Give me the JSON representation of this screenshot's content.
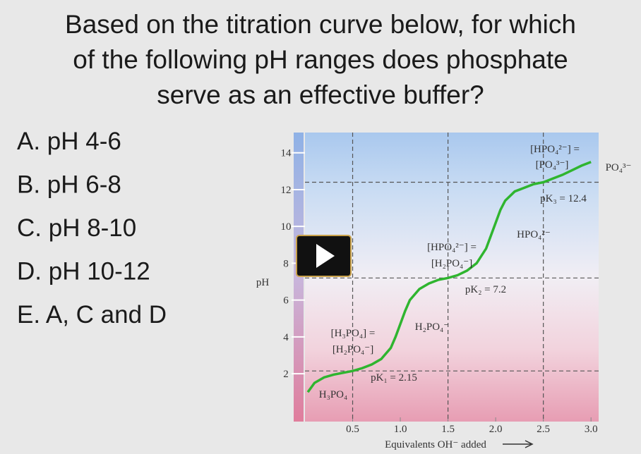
{
  "question": [
    "Based on the titration curve below, for which",
    "of the following pH ranges does phosphate",
    "serve as an effective buffer?"
  ],
  "choices": [
    "A.  pH 4-6",
    "B.  pH 6-8",
    "C.  pH 8-10",
    "D.  pH 10-12",
    "E.  A, C and D"
  ],
  "chart_data": {
    "type": "line",
    "y_label": "pH",
    "x_label": "Equivalents OH⁻ added",
    "x": [
      0.03,
      0.1,
      0.2,
      0.3,
      0.4,
      0.5,
      0.6,
      0.7,
      0.8,
      0.9,
      0.95,
      1.0,
      1.05,
      1.1,
      1.2,
      1.3,
      1.4,
      1.5,
      1.6,
      1.7,
      1.8,
      1.9,
      1.95,
      2.0,
      2.05,
      2.1,
      2.2,
      2.3,
      2.4,
      2.5,
      2.6,
      2.7,
      2.8,
      2.9,
      3.0
    ],
    "series": [
      {
        "color": "#2fb52f",
        "values": [
          1.0,
          1.5,
          1.8,
          1.95,
          2.05,
          2.15,
          2.3,
          2.5,
          2.8,
          3.4,
          4.0,
          4.7,
          5.4,
          6.0,
          6.6,
          6.9,
          7.1,
          7.2,
          7.35,
          7.6,
          8.0,
          8.8,
          9.5,
          10.2,
          10.9,
          11.4,
          11.9,
          12.1,
          12.3,
          12.4,
          12.6,
          12.8,
          13.05,
          13.3,
          13.5
        ]
      }
    ],
    "xlim": [
      0,
      3.08
    ],
    "ylim": [
      -0.6,
      15.1
    ],
    "xticks": [
      0.5,
      {
        "value": 1,
        "label": "1.0"
      },
      1.5,
      {
        "value": 2,
        "label": "2.0"
      },
      2.5,
      {
        "value": 3,
        "label": "3.0"
      }
    ],
    "yticks": [
      2,
      4,
      6,
      8,
      10,
      12,
      14
    ],
    "pk_lines": [
      {
        "x": 0.5,
        "value": 2.15,
        "label": "pK₁ = 2.15"
      },
      {
        "x": 1.5,
        "value": 7.2,
        "label": "pK₂ = 7.2"
      },
      {
        "x": 2.5,
        "value": 12.4,
        "label": "pK₃ = 12.4"
      }
    ],
    "annotations": [
      "[HPO₄²⁻] =",
      "[PO₄³⁻]",
      "PO₄³⁻",
      "HPO₄²⁻",
      "[HPO₄²⁻] =",
      "[H₂PO₄⁻]",
      "H₂PO₄⁻",
      "[H₃PO₄] =",
      "[H₂PO₄⁻]",
      "H₃PO₄"
    ]
  }
}
